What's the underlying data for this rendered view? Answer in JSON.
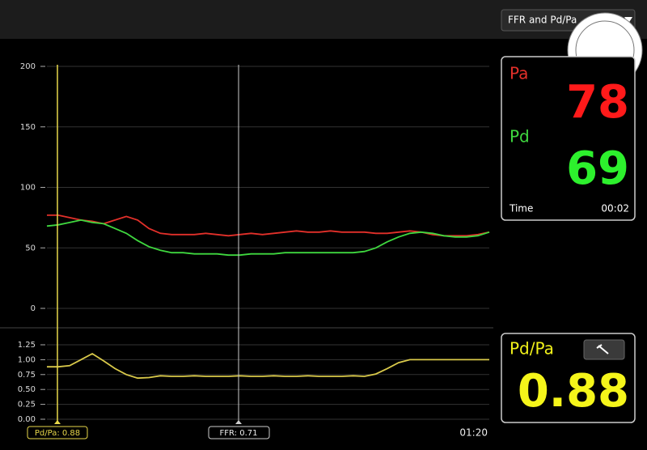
{
  "mode_select": "FFR and Pd/Pa",
  "readout": {
    "pa_label": "Pa",
    "pa_value": 78,
    "pd_label": "Pd",
    "pd_value": 69,
    "time_label": "Time",
    "time_value": "00:02"
  },
  "ratio_panel": {
    "label": "Pd/Pa",
    "value": 0.88
  },
  "cursor_labels": [
    "Pd/Pa: 0.88",
    "FFR: 0.71"
  ],
  "time_end": "01:20",
  "chart_data": [
    {
      "type": "line",
      "ylim": [
        0,
        200
      ],
      "yticks": [
        0,
        50,
        100,
        150,
        200
      ],
      "grid": true,
      "series": [
        {
          "color": "#e3302a",
          "values": [
            77,
            77,
            75,
            73,
            72,
            70,
            73,
            76,
            73,
            66,
            62,
            61,
            61,
            61,
            62,
            61,
            60,
            61,
            62,
            61,
            62,
            63,
            64,
            63,
            63,
            64,
            63,
            63,
            63,
            62,
            62,
            63,
            64,
            63,
            61,
            60,
            60,
            60,
            61,
            63
          ]
        },
        {
          "color": "#3fd83f",
          "values": [
            68,
            69,
            71,
            73,
            71,
            70,
            66,
            62,
            56,
            51,
            48,
            46,
            46,
            45,
            45,
            45,
            44,
            44,
            45,
            45,
            45,
            46,
            46,
            46,
            46,
            46,
            46,
            46,
            47,
            50,
            55,
            59,
            62,
            63,
            62,
            60,
            59,
            59,
            60,
            63
          ]
        }
      ]
    },
    {
      "type": "line",
      "ylim": [
        0,
        1.25
      ],
      "yticks": [
        {
          "value": 0,
          "label": "0.00"
        },
        0.25,
        {
          "value": 0.5,
          "label": "0.50"
        },
        0.75,
        {
          "value": 1,
          "label": "1.00"
        },
        1.25
      ],
      "grid": true,
      "series": [
        {
          "color": "#d9c94a",
          "values": [
            0.88,
            0.88,
            0.9,
            1.0,
            1.1,
            0.98,
            0.85,
            0.75,
            0.69,
            0.7,
            0.73,
            0.72,
            0.72,
            0.73,
            0.72,
            0.72,
            0.72,
            0.73,
            0.72,
            0.72,
            0.73,
            0.72,
            0.72,
            0.73,
            0.72,
            0.72,
            0.72,
            0.73,
            0.72,
            0.76,
            0.85,
            0.95,
            1.0,
            1.0,
            1.0,
            1.0,
            1.0,
            1.0,
            1.0,
            1.0
          ]
        }
      ]
    }
  ]
}
